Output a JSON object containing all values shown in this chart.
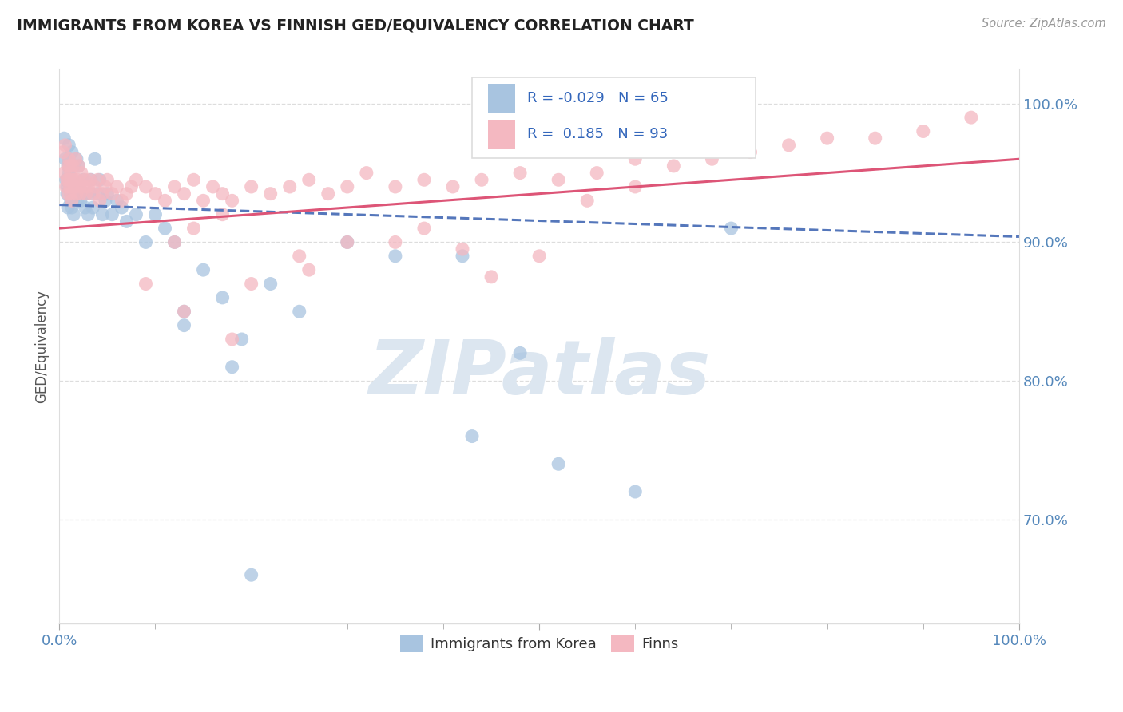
{
  "title": "IMMIGRANTS FROM KOREA VS FINNISH GED/EQUIVALENCY CORRELATION CHART",
  "source": "Source: ZipAtlas.com",
  "ylabel": "GED/Equivalency",
  "xlim": [
    0.0,
    1.0
  ],
  "ylim": [
    0.625,
    1.025
  ],
  "yticks": [
    0.7,
    0.8,
    0.9,
    1.0
  ],
  "ytick_labels": [
    "70.0%",
    "80.0%",
    "90.0%",
    "100.0%"
  ],
  "korea_R": -0.029,
  "korea_N": 65,
  "finn_R": 0.185,
  "finn_N": 93,
  "korea_color": "#a8c4e0",
  "finn_color": "#f4b8c1",
  "korea_line_color": "#5577bb",
  "finn_line_color": "#dd5577",
  "watermark": "ZIPatlas",
  "watermark_color": "#dce6f0",
  "legend_label_korea": "Immigrants from Korea",
  "legend_label_finn": "Finns",
  "korea_x": [
    0.005,
    0.006,
    0.007,
    0.008,
    0.008,
    0.009,
    0.009,
    0.01,
    0.01,
    0.01,
    0.011,
    0.011,
    0.012,
    0.012,
    0.013,
    0.013,
    0.014,
    0.015,
    0.015,
    0.016,
    0.017,
    0.018,
    0.019,
    0.02,
    0.021,
    0.022,
    0.025,
    0.027,
    0.028,
    0.03,
    0.032,
    0.033,
    0.035,
    0.037,
    0.04,
    0.042,
    0.045,
    0.048,
    0.05,
    0.055,
    0.06,
    0.065,
    0.07,
    0.08,
    0.09,
    0.1,
    0.11,
    0.12,
    0.13,
    0.15,
    0.17,
    0.19,
    0.22,
    0.25,
    0.13,
    0.18,
    0.3,
    0.35,
    0.42,
    0.48,
    0.52,
    0.43,
    0.6,
    0.7,
    0.2
  ],
  "korea_y": [
    0.975,
    0.96,
    0.945,
    0.94,
    0.935,
    0.955,
    0.925,
    0.97,
    0.96,
    0.95,
    0.945,
    0.94,
    0.935,
    0.93,
    0.965,
    0.925,
    0.93,
    0.92,
    0.955,
    0.935,
    0.94,
    0.96,
    0.93,
    0.955,
    0.94,
    0.93,
    0.945,
    0.925,
    0.935,
    0.92,
    0.935,
    0.945,
    0.925,
    0.96,
    0.935,
    0.945,
    0.92,
    0.93,
    0.935,
    0.92,
    0.93,
    0.925,
    0.915,
    0.92,
    0.9,
    0.92,
    0.91,
    0.9,
    0.85,
    0.88,
    0.86,
    0.83,
    0.87,
    0.85,
    0.84,
    0.81,
    0.9,
    0.89,
    0.89,
    0.82,
    0.74,
    0.76,
    0.72,
    0.91,
    0.66
  ],
  "finn_x": [
    0.004,
    0.005,
    0.006,
    0.007,
    0.008,
    0.009,
    0.009,
    0.01,
    0.01,
    0.011,
    0.011,
    0.012,
    0.012,
    0.013,
    0.013,
    0.014,
    0.015,
    0.016,
    0.017,
    0.018,
    0.019,
    0.02,
    0.021,
    0.022,
    0.023,
    0.025,
    0.027,
    0.028,
    0.03,
    0.032,
    0.035,
    0.037,
    0.04,
    0.042,
    0.045,
    0.048,
    0.05,
    0.055,
    0.06,
    0.065,
    0.07,
    0.075,
    0.08,
    0.09,
    0.1,
    0.11,
    0.12,
    0.13,
    0.14,
    0.15,
    0.16,
    0.17,
    0.18,
    0.2,
    0.22,
    0.24,
    0.26,
    0.28,
    0.3,
    0.32,
    0.35,
    0.38,
    0.41,
    0.44,
    0.48,
    0.52,
    0.56,
    0.6,
    0.64,
    0.68,
    0.72,
    0.76,
    0.8,
    0.85,
    0.9,
    0.95,
    0.13,
    0.25,
    0.18,
    0.35,
    0.42,
    0.5,
    0.55,
    0.6,
    0.45,
    0.38,
    0.3,
    0.26,
    0.2,
    0.17,
    0.14,
    0.12,
    0.09
  ],
  "finn_y": [
    0.965,
    0.95,
    0.97,
    0.94,
    0.945,
    0.955,
    0.935,
    0.96,
    0.945,
    0.94,
    0.955,
    0.935,
    0.95,
    0.945,
    0.93,
    0.955,
    0.945,
    0.94,
    0.96,
    0.935,
    0.945,
    0.955,
    0.94,
    0.935,
    0.95,
    0.94,
    0.945,
    0.935,
    0.94,
    0.945,
    0.935,
    0.94,
    0.945,
    0.93,
    0.935,
    0.94,
    0.945,
    0.935,
    0.94,
    0.93,
    0.935,
    0.94,
    0.945,
    0.94,
    0.935,
    0.93,
    0.94,
    0.935,
    0.945,
    0.93,
    0.94,
    0.935,
    0.93,
    0.94,
    0.935,
    0.94,
    0.945,
    0.935,
    0.94,
    0.95,
    0.94,
    0.945,
    0.94,
    0.945,
    0.95,
    0.945,
    0.95,
    0.96,
    0.955,
    0.96,
    0.965,
    0.97,
    0.975,
    0.975,
    0.98,
    0.99,
    0.85,
    0.89,
    0.83,
    0.9,
    0.895,
    0.89,
    0.93,
    0.94,
    0.875,
    0.91,
    0.9,
    0.88,
    0.87,
    0.92,
    0.91,
    0.9,
    0.87
  ],
  "trendline_x_start": 0.0,
  "trendline_x_end": 1.0,
  "korea_trend_y_start": 0.927,
  "korea_trend_y_end": 0.904,
  "finn_trend_y_start": 0.91,
  "finn_trend_y_end": 0.96
}
